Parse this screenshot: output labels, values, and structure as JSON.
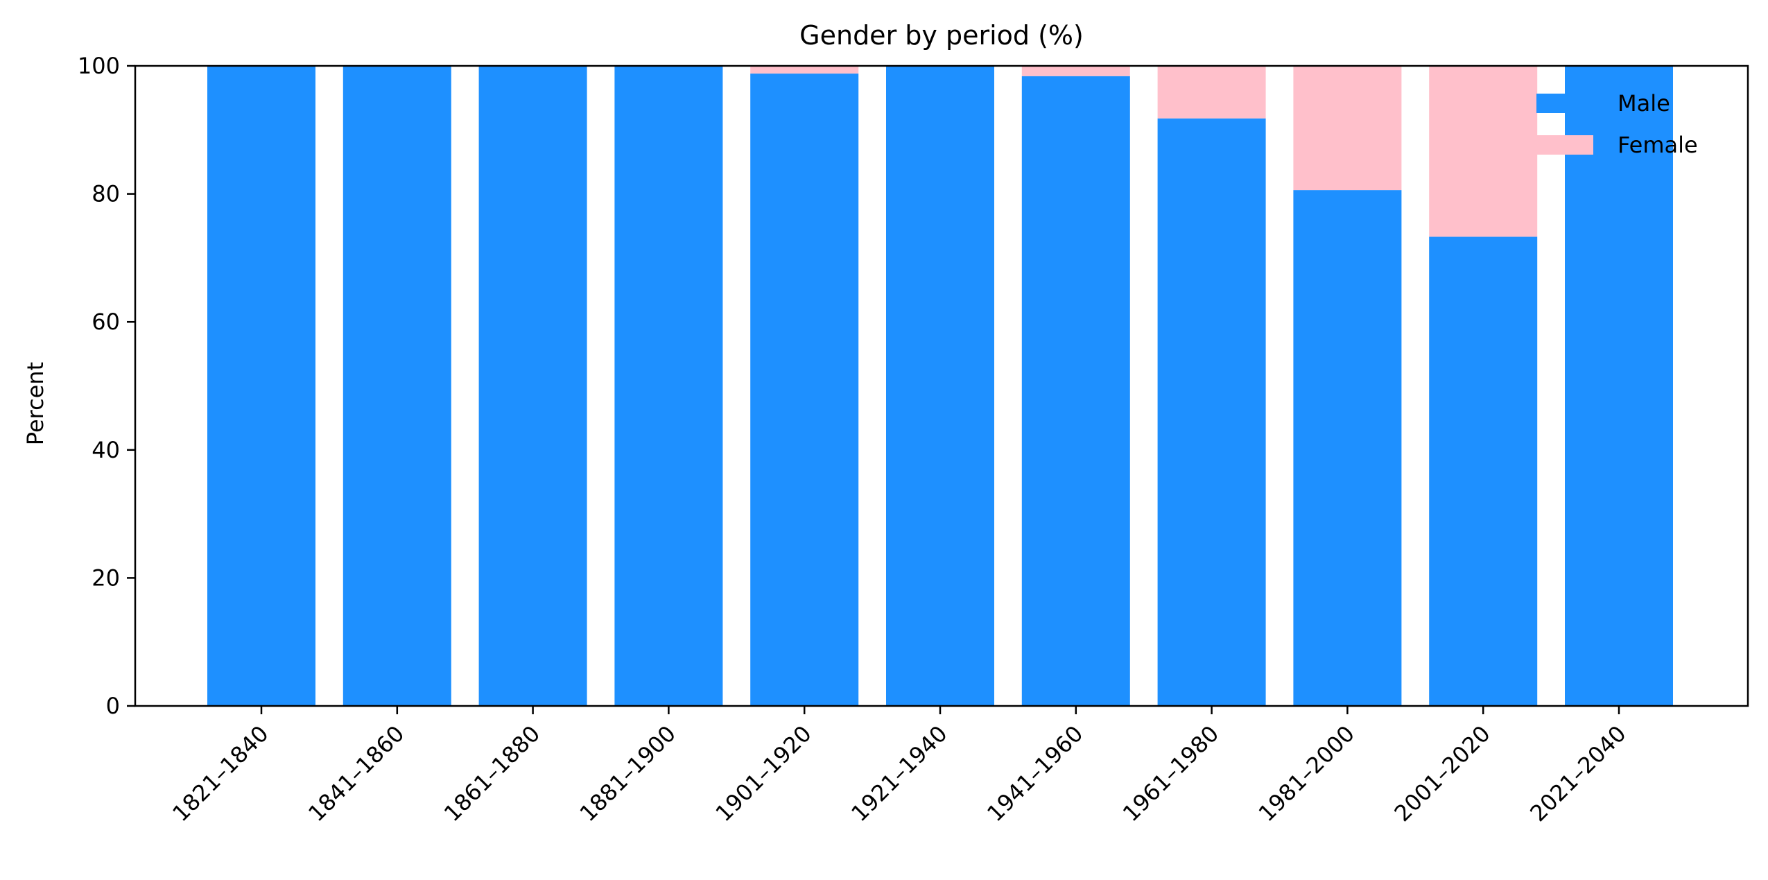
{
  "chart_data": {
    "type": "bar",
    "stacked": true,
    "title": "Gender by period (%)",
    "xlabel": "",
    "ylabel": "Percent",
    "ylim": [
      0,
      100
    ],
    "yticks": [
      0,
      20,
      40,
      60,
      80,
      100
    ],
    "yticklabels": [
      "0",
      "20",
      "40",
      "60",
      "80",
      "100"
    ],
    "grid": false,
    "legend_position": "top-right",
    "categories": [
      "1821–1840",
      "1841–1860",
      "1861–1880",
      "1881–1900",
      "1901–1920",
      "1921–1940",
      "1941–1960",
      "1961–1980",
      "1981–2000",
      "2001–2020",
      "2021–2040"
    ],
    "series": [
      {
        "name": "Male",
        "color": "#1e90ff",
        "values": [
          100,
          100,
          100,
          100,
          98.8,
          100,
          98.4,
          91.8,
          80.6,
          73.3,
          100
        ]
      },
      {
        "name": "Female",
        "color": "#ffc0cb",
        "values": [
          0,
          0,
          0,
          0,
          1.2,
          0,
          1.6,
          8.2,
          19.4,
          26.7,
          0
        ]
      }
    ]
  }
}
